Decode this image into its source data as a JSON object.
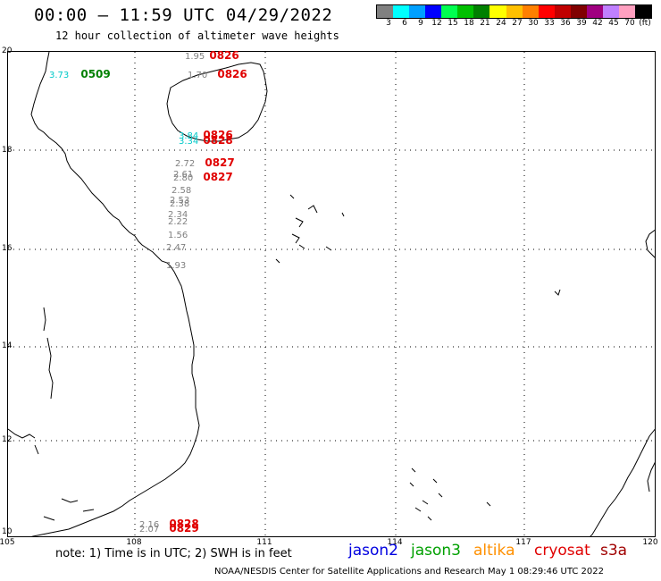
{
  "header": {
    "title": "00:00 – 11:59 UTC 04/29/2022",
    "subtitle": "12 hour collection of altimeter wave heights"
  },
  "legend": {
    "colors": [
      "#808080",
      "#00ffff",
      "#00a0ff",
      "#0000ff",
      "#00ff50",
      "#00c000",
      "#008000",
      "#ffff00",
      "#ffc000",
      "#ff8000",
      "#ff0000",
      "#c00000",
      "#800000",
      "#a00080",
      "#c080ff",
      "#ffa0c0",
      "#000000"
    ],
    "labels": [
      "3",
      "6",
      "9",
      "12",
      "15",
      "18",
      "21",
      "24",
      "27",
      "30",
      "33",
      "36",
      "39",
      "42",
      "45",
      "70",
      "(ft)"
    ]
  },
  "axes": {
    "lat_labels": [
      "20",
      "18",
      "16",
      "14",
      "12",
      "10"
    ],
    "lon_labels": [
      "105",
      "108",
      "111",
      "114",
      "117",
      "120"
    ]
  },
  "observations": [
    {
      "value": "1.95",
      "value_color": "#808080",
      "time": "0826",
      "time_color": "#e00000"
    },
    {
      "value": "3.73",
      "value_color": "#00c8c8",
      "time": "0509",
      "time_color": "#008000"
    },
    {
      "value": "1.70",
      "value_color": "#808080",
      "time": "0826",
      "time_color": "#e00000"
    },
    {
      "value": "3.84",
      "value_color": "#00c8c8",
      "time": "0826",
      "time_color": "#e00000"
    },
    {
      "value": "3.34",
      "value_color": "#00c8c8",
      "time": "0828",
      "time_color": "#e00000"
    },
    {
      "value": "2.72",
      "value_color": "#808080",
      "time": "0827",
      "time_color": "#e00000"
    },
    {
      "value": "2.61",
      "value_color": "#808080",
      "time": "",
      "time_color": "#e00000"
    },
    {
      "value": "2.80",
      "value_color": "#808080",
      "time": "0827",
      "time_color": "#e00000"
    },
    {
      "value": "2.58",
      "value_color": "#808080",
      "time": "",
      "time_color": "#e00000"
    },
    {
      "value": "2.53",
      "value_color": "#808080",
      "time": "",
      "time_color": "#e00000"
    },
    {
      "value": "2.38",
      "value_color": "#808080",
      "time": "",
      "time_color": "#e00000"
    },
    {
      "value": "2.34",
      "value_color": "#808080",
      "time": "",
      "time_color": "#e00000"
    },
    {
      "value": "2.22",
      "value_color": "#808080",
      "time": "",
      "time_color": "#e00000"
    },
    {
      "value": "1.56",
      "value_color": "#808080",
      "time": "",
      "time_color": "#e00000"
    },
    {
      "value": "2.47",
      "value_color": "#808080",
      "time": "",
      "time_color": "#e00000"
    },
    {
      "value": "1.93",
      "value_color": "#808080",
      "time": "",
      "time_color": "#e00000"
    },
    {
      "value": "2.16",
      "value_color": "#808080",
      "time": "0828",
      "time_color": "#e00000"
    },
    {
      "value": "2.07",
      "value_color": "#808080",
      "time": "0829",
      "time_color": "#e00000"
    }
  ],
  "note": "note:  1) Time is in UTC;  2) SWH is in feet",
  "satellites": [
    {
      "name": "jason2",
      "color": "#0000e0"
    },
    {
      "name": "jason3",
      "color": "#00a000"
    },
    {
      "name": "altika",
      "color": "#ff9000"
    },
    {
      "name": "cryosat",
      "color": "#e00000"
    },
    {
      "name": "s3a",
      "color": "#a00000"
    }
  ],
  "footer": "NOAA/NESDIS Center for Satellite Applications and Research    May  1 08:29:46 UTC 2022"
}
